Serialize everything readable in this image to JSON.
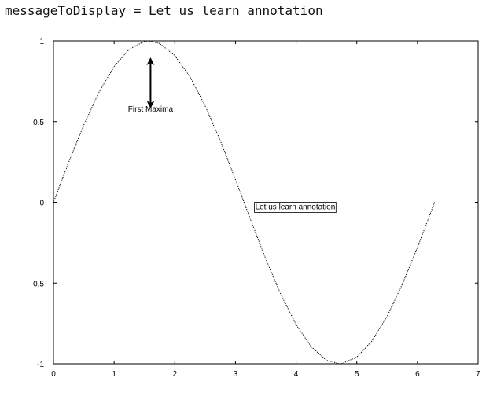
{
  "console": {
    "line": "messageToDisplay = Let us learn annotation"
  },
  "chart_data": {
    "type": "line",
    "title": "",
    "xlabel": "",
    "ylabel": "",
    "xlim": [
      0,
      7
    ],
    "ylim": [
      -1,
      1
    ],
    "x_ticks": [
      "0",
      "1",
      "2",
      "3",
      "4",
      "5",
      "6",
      "7"
    ],
    "y_ticks": [
      "1",
      "0.5",
      "0",
      "-0.5",
      "-1"
    ],
    "grid": false,
    "series": [
      {
        "function": "sin(x)",
        "x": [
          0,
          0.25,
          0.5,
          0.75,
          1.0,
          1.25,
          1.5,
          1.5708,
          1.75,
          2.0,
          2.25,
          2.5,
          2.75,
          3.0,
          3.1416,
          3.25,
          3.5,
          3.75,
          4.0,
          4.25,
          4.5,
          4.7124,
          4.75,
          5.0,
          5.25,
          5.5,
          5.75,
          6.0,
          6.2832
        ],
        "y": [
          0,
          0.247,
          0.479,
          0.682,
          0.841,
          0.949,
          0.997,
          1.0,
          0.984,
          0.909,
          0.778,
          0.598,
          0.382,
          0.141,
          0.0,
          -0.108,
          -0.351,
          -0.572,
          -0.757,
          -0.895,
          -0.978,
          -1.0,
          -0.999,
          -0.959,
          -0.859,
          -0.706,
          -0.508,
          -0.279,
          0.0
        ],
        "color": "#000000"
      }
    ],
    "annotations": [
      {
        "kind": "double-arrow",
        "text": "First Maxima",
        "from": [
          1.6,
          1.0
        ],
        "to": [
          1.6,
          0.62
        ]
      },
      {
        "kind": "textbox",
        "text": "Let us learn annotation",
        "at": [
          3.3,
          0.0
        ]
      }
    ]
  }
}
